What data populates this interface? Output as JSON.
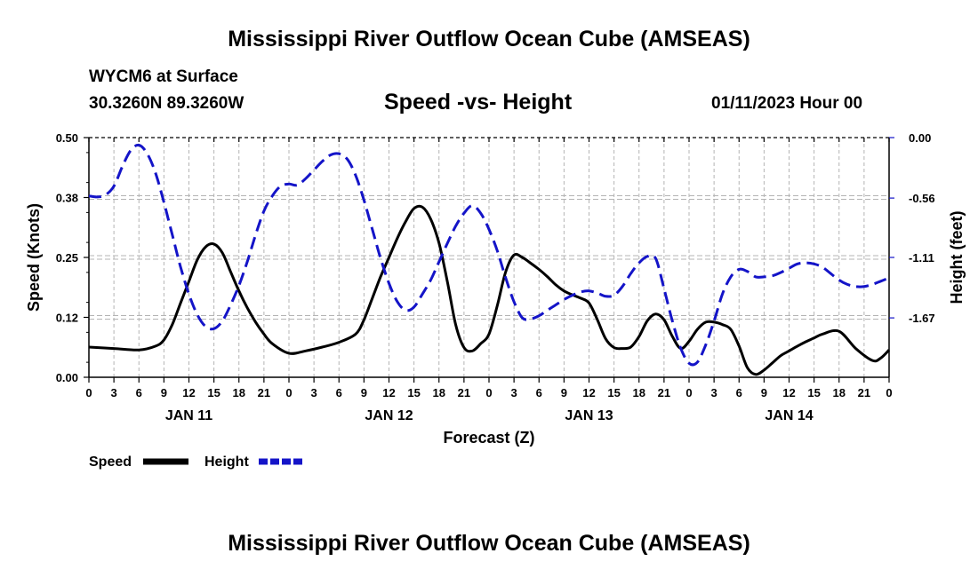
{
  "header": {
    "title": "Mississippi River Outflow Ocean Cube (AMSEAS)",
    "station": "WYCM6 at Surface",
    "coords": "30.3260N  89.3260W",
    "subtitle": "Speed -vs- Height",
    "date": "01/11/2023 Hour 00"
  },
  "footer": {
    "title": "Mississippi River Outflow Ocean Cube (AMSEAS)"
  },
  "chart_data": {
    "type": "line",
    "title": "Speed -vs- Height",
    "xlabel": "Forecast (Z)",
    "ylabel_left": "Speed (Knots)",
    "ylabel_right": "Height (feet)",
    "x_hour_ticks": [
      "0",
      "3",
      "6",
      "9",
      "12",
      "15",
      "18",
      "21",
      "0",
      "3",
      "6",
      "9",
      "12",
      "15",
      "18",
      "21",
      "0",
      "3",
      "6",
      "9",
      "12",
      "15",
      "18",
      "21",
      "0",
      "3",
      "6",
      "9",
      "12",
      "15",
      "18",
      "21",
      "0"
    ],
    "day_labels": [
      {
        "label": "JAN 11",
        "hour": 12
      },
      {
        "label": "JAN 12",
        "hour": 36
      },
      {
        "label": "JAN 13",
        "hour": 60
      },
      {
        "label": "JAN 14",
        "hour": 84
      }
    ],
    "xlim": [
      0,
      96
    ],
    "left_axis": {
      "ticks": [
        "0.00",
        "0.12",
        "0.25",
        "0.38",
        "0.50"
      ],
      "ylim": [
        0,
        0.5
      ]
    },
    "right_axis": {
      "ticks": [
        "0.00",
        "-0.56",
        "-1.11",
        "-1.67"
      ],
      "tick_values": [
        0,
        -0.56,
        -1.11,
        -1.67
      ],
      "ylim": [
        -2.22,
        0
      ]
    },
    "legend": {
      "position": "bottom-left",
      "items": [
        "Speed",
        "Height"
      ]
    },
    "series": [
      {
        "name": "Speed",
        "axis": "left",
        "color": "#000000",
        "dash": "solid",
        "x": [
          0,
          3,
          6,
          8,
          9,
          10,
          11,
          12,
          13,
          14,
          15,
          16,
          17,
          18,
          19,
          20,
          21,
          22,
          24,
          26,
          28,
          30,
          32,
          33,
          34,
          35,
          36,
          37,
          38,
          39,
          40,
          41,
          42,
          43,
          44,
          45,
          46,
          47,
          48,
          49,
          50,
          51,
          52,
          53,
          54,
          55,
          56,
          57,
          58,
          59,
          60,
          61,
          62,
          63,
          64,
          65,
          66,
          67,
          68,
          69,
          70,
          71,
          72,
          73,
          74,
          75,
          76,
          77,
          78,
          79,
          80,
          81,
          82,
          83,
          84,
          85,
          86,
          87,
          88,
          90,
          92,
          94,
          95,
          96
        ],
        "values": [
          0.063,
          0.06,
          0.057,
          0.065,
          0.078,
          0.11,
          0.155,
          0.2,
          0.245,
          0.272,
          0.278,
          0.26,
          0.22,
          0.18,
          0.145,
          0.115,
          0.09,
          0.07,
          0.05,
          0.055,
          0.063,
          0.073,
          0.09,
          0.12,
          0.165,
          0.21,
          0.25,
          0.29,
          0.325,
          0.352,
          0.355,
          0.33,
          0.28,
          0.2,
          0.11,
          0.062,
          0.055,
          0.07,
          0.09,
          0.15,
          0.22,
          0.255,
          0.25,
          0.238,
          0.225,
          0.21,
          0.193,
          0.18,
          0.172,
          0.165,
          0.155,
          0.12,
          0.08,
          0.062,
          0.06,
          0.063,
          0.085,
          0.118,
          0.132,
          0.12,
          0.085,
          0.06,
          0.075,
          0.1,
          0.115,
          0.115,
          0.11,
          0.1,
          0.065,
          0.02,
          0.006,
          0.015,
          0.03,
          0.045,
          0.055,
          0.065,
          0.074,
          0.082,
          0.09,
          0.096,
          0.06,
          0.035,
          0.04,
          0.057
        ]
      },
      {
        "name": "Height",
        "axis": "right",
        "color": "#1414c8",
        "dash": "dashed",
        "x": [
          0,
          1,
          2,
          3,
          4,
          5,
          6,
          7,
          8,
          9,
          10,
          11,
          12,
          13,
          14,
          15,
          16,
          17,
          18,
          19,
          20,
          21,
          22,
          23,
          24,
          25,
          26,
          27,
          28,
          29,
          30,
          31,
          32,
          33,
          34,
          35,
          36,
          37,
          38,
          39,
          40,
          41,
          42,
          43,
          44,
          45,
          46,
          47,
          48,
          49,
          50,
          51,
          52,
          53,
          54,
          55,
          56,
          57,
          58,
          59,
          60,
          61,
          62,
          63,
          64,
          65,
          66,
          67,
          68,
          69,
          70,
          71,
          72,
          73,
          74,
          75,
          76,
          77,
          78,
          79,
          80,
          81,
          82,
          83,
          84,
          85,
          86,
          87,
          88,
          89,
          90,
          91,
          92,
          93,
          94,
          95,
          96
        ],
        "values": [
          -0.54,
          -0.55,
          -0.53,
          -0.45,
          -0.27,
          -0.12,
          -0.07,
          -0.15,
          -0.33,
          -0.6,
          -0.9,
          -1.2,
          -1.45,
          -1.64,
          -1.75,
          -1.77,
          -1.7,
          -1.55,
          -1.37,
          -1.15,
          -0.9,
          -0.68,
          -0.54,
          -0.45,
          -0.43,
          -0.44,
          -0.38,
          -0.3,
          -0.22,
          -0.16,
          -0.15,
          -0.2,
          -0.35,
          -0.58,
          -0.85,
          -1.12,
          -1.35,
          -1.52,
          -1.6,
          -1.57,
          -1.45,
          -1.32,
          -1.15,
          -0.98,
          -0.82,
          -0.7,
          -0.63,
          -0.7,
          -0.85,
          -1.05,
          -1.3,
          -1.52,
          -1.67,
          -1.68,
          -1.65,
          -1.6,
          -1.55,
          -1.5,
          -1.46,
          -1.43,
          -1.42,
          -1.44,
          -1.47,
          -1.46,
          -1.38,
          -1.26,
          -1.16,
          -1.1,
          -1.12,
          -1.4,
          -1.7,
          -1.95,
          -2.09,
          -2.08,
          -1.92,
          -1.7,
          -1.45,
          -1.29,
          -1.22,
          -1.24,
          -1.29,
          -1.29,
          -1.28,
          -1.25,
          -1.21,
          -1.17,
          -1.16,
          -1.17,
          -1.2,
          -1.26,
          -1.32,
          -1.36,
          -1.38,
          -1.38,
          -1.36,
          -1.33,
          -1.3
        ]
      }
    ]
  }
}
